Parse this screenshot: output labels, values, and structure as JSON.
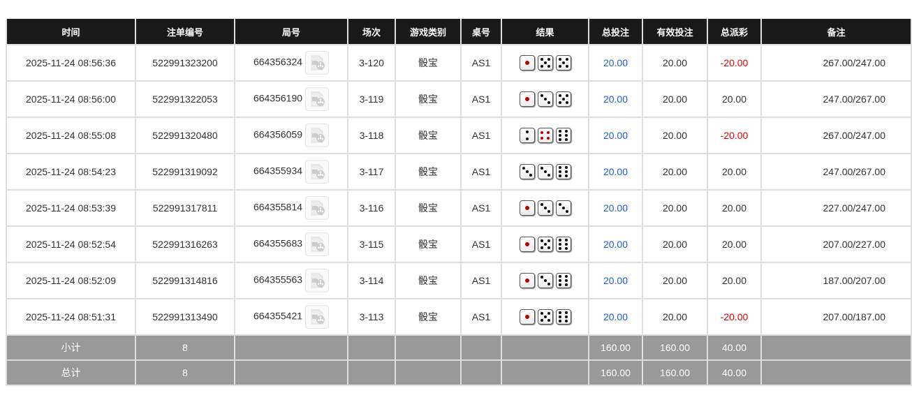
{
  "headers": [
    "时间",
    "注单编号",
    "局号",
    "场次",
    "游戏类别",
    "桌号",
    "结果",
    "总投注",
    "有效投注",
    "总派彩",
    "备注"
  ],
  "rows": [
    {
      "time": "2025-11-24 08:56:36",
      "bet_id": "522991323200",
      "round": "664356324",
      "session": "3-120",
      "game": "骰宝",
      "table": "AS1",
      "dice": [
        1,
        5,
        5
      ],
      "total_bet": "20.00",
      "valid_bet": "20.00",
      "payout": "-20.00",
      "remark": "267.00/247.00"
    },
    {
      "time": "2025-11-24 08:56:00",
      "bet_id": "522991322053",
      "round": "664356190",
      "session": "3-119",
      "game": "骰宝",
      "table": "AS1",
      "dice": [
        1,
        3,
        5
      ],
      "total_bet": "20.00",
      "valid_bet": "20.00",
      "payout": "20.00",
      "remark": "247.00/267.00"
    },
    {
      "time": "2025-11-24 08:55:08",
      "bet_id": "522991320480",
      "round": "664356059",
      "session": "3-118",
      "game": "骰宝",
      "table": "AS1",
      "dice": [
        2,
        4,
        6
      ],
      "total_bet": "20.00",
      "valid_bet": "20.00",
      "payout": "-20.00",
      "remark": "267.00/247.00"
    },
    {
      "time": "2025-11-24 08:54:23",
      "bet_id": "522991319092",
      "round": "664355934",
      "session": "3-117",
      "game": "骰宝",
      "table": "AS1",
      "dice": [
        3,
        3,
        6
      ],
      "total_bet": "20.00",
      "valid_bet": "20.00",
      "payout": "20.00",
      "remark": "247.00/267.00"
    },
    {
      "time": "2025-11-24 08:53:39",
      "bet_id": "522991317811",
      "round": "664355814",
      "session": "3-116",
      "game": "骰宝",
      "table": "AS1",
      "dice": [
        1,
        3,
        3
      ],
      "total_bet": "20.00",
      "valid_bet": "20.00",
      "payout": "20.00",
      "remark": "227.00/247.00"
    },
    {
      "time": "2025-11-24 08:52:54",
      "bet_id": "522991316263",
      "round": "664355683",
      "session": "3-115",
      "game": "骰宝",
      "table": "AS1",
      "dice": [
        1,
        5,
        6
      ],
      "total_bet": "20.00",
      "valid_bet": "20.00",
      "payout": "20.00",
      "remark": "207.00/227.00"
    },
    {
      "time": "2025-11-24 08:52:09",
      "bet_id": "522991314816",
      "round": "664355563",
      "session": "3-114",
      "game": "骰宝",
      "table": "AS1",
      "dice": [
        1,
        3,
        6
      ],
      "total_bet": "20.00",
      "valid_bet": "20.00",
      "payout": "20.00",
      "remark": "187.00/207.00"
    },
    {
      "time": "2025-11-24 08:51:31",
      "bet_id": "522991313490",
      "round": "664355421",
      "session": "3-113",
      "game": "骰宝",
      "table": "AS1",
      "dice": [
        1,
        5,
        6
      ],
      "total_bet": "20.00",
      "valid_bet": "20.00",
      "payout": "-20.00",
      "remark": "207.00/187.00"
    }
  ],
  "subtotal": {
    "label": "小计",
    "count": "8",
    "total_bet": "160.00",
    "valid_bet": "160.00",
    "payout": "40.00"
  },
  "total": {
    "label": "总计",
    "count": "8",
    "total_bet": "160.00",
    "valid_bet": "160.00",
    "payout": "40.00"
  },
  "colors": {
    "header_bg": "#1a1a1a",
    "summary_bg": "#999999",
    "bet_blue": "#1c5fd6",
    "loss_red": "#ee0000"
  },
  "icons": {
    "replay": "video-replay-icon"
  }
}
